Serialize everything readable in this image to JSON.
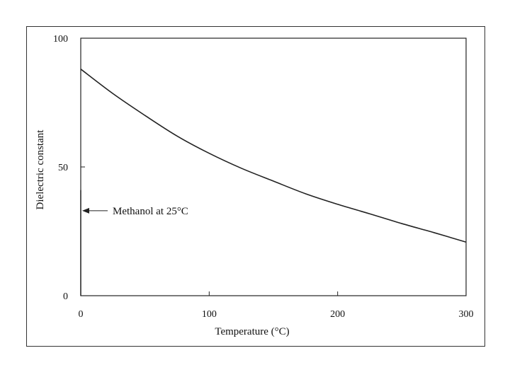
{
  "chart_data": {
    "type": "line",
    "title": "",
    "xlabel": "Temperature (°C)",
    "ylabel": "Dielectric constant",
    "xlim": [
      0,
      300
    ],
    "ylim": [
      0,
      100
    ],
    "x_ticks": [
      0,
      100,
      200,
      300
    ],
    "y_ticks": [
      0,
      50,
      100
    ],
    "x_tick_labels": [
      "0",
      "100",
      "200",
      "300"
    ],
    "y_tick_labels": [
      "0",
      "50",
      "100"
    ],
    "grid": false,
    "legend": "none",
    "line_color": "#222222",
    "series": [
      {
        "x": [
          0,
          25,
          50,
          75,
          100,
          125,
          150,
          175,
          200,
          225,
          250,
          275,
          300
        ],
        "values": [
          88,
          78.5,
          70,
          62,
          55.3,
          49.5,
          44.5,
          39.6,
          35.5,
          31.8,
          28,
          24.5,
          20.8
        ]
      }
    ],
    "annotations": [
      {
        "text": "Methanol at 25°C",
        "x": 0,
        "y": 33,
        "marker_line_y_top": 41,
        "arrow": "left"
      }
    ]
  }
}
